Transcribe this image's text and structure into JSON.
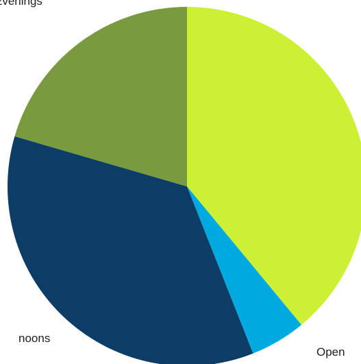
{
  "chart_data": {
    "type": "pie",
    "start": "12 o'clock",
    "direction": "clockwise",
    "slices": [
      {
        "label": "",
        "value": 39.0,
        "color": "#ccf033"
      },
      {
        "label": "Open",
        "value": 5.0,
        "color": "#00a9e0"
      },
      {
        "label": "Afternoons",
        "value": 35.5,
        "color": "#0b3d66"
      },
      {
        "label": "Evenings",
        "value": 20.5,
        "color": "#7a9a3f"
      }
    ],
    "visible_label_text": [
      "Evenings",
      "Open",
      "noons"
    ]
  }
}
